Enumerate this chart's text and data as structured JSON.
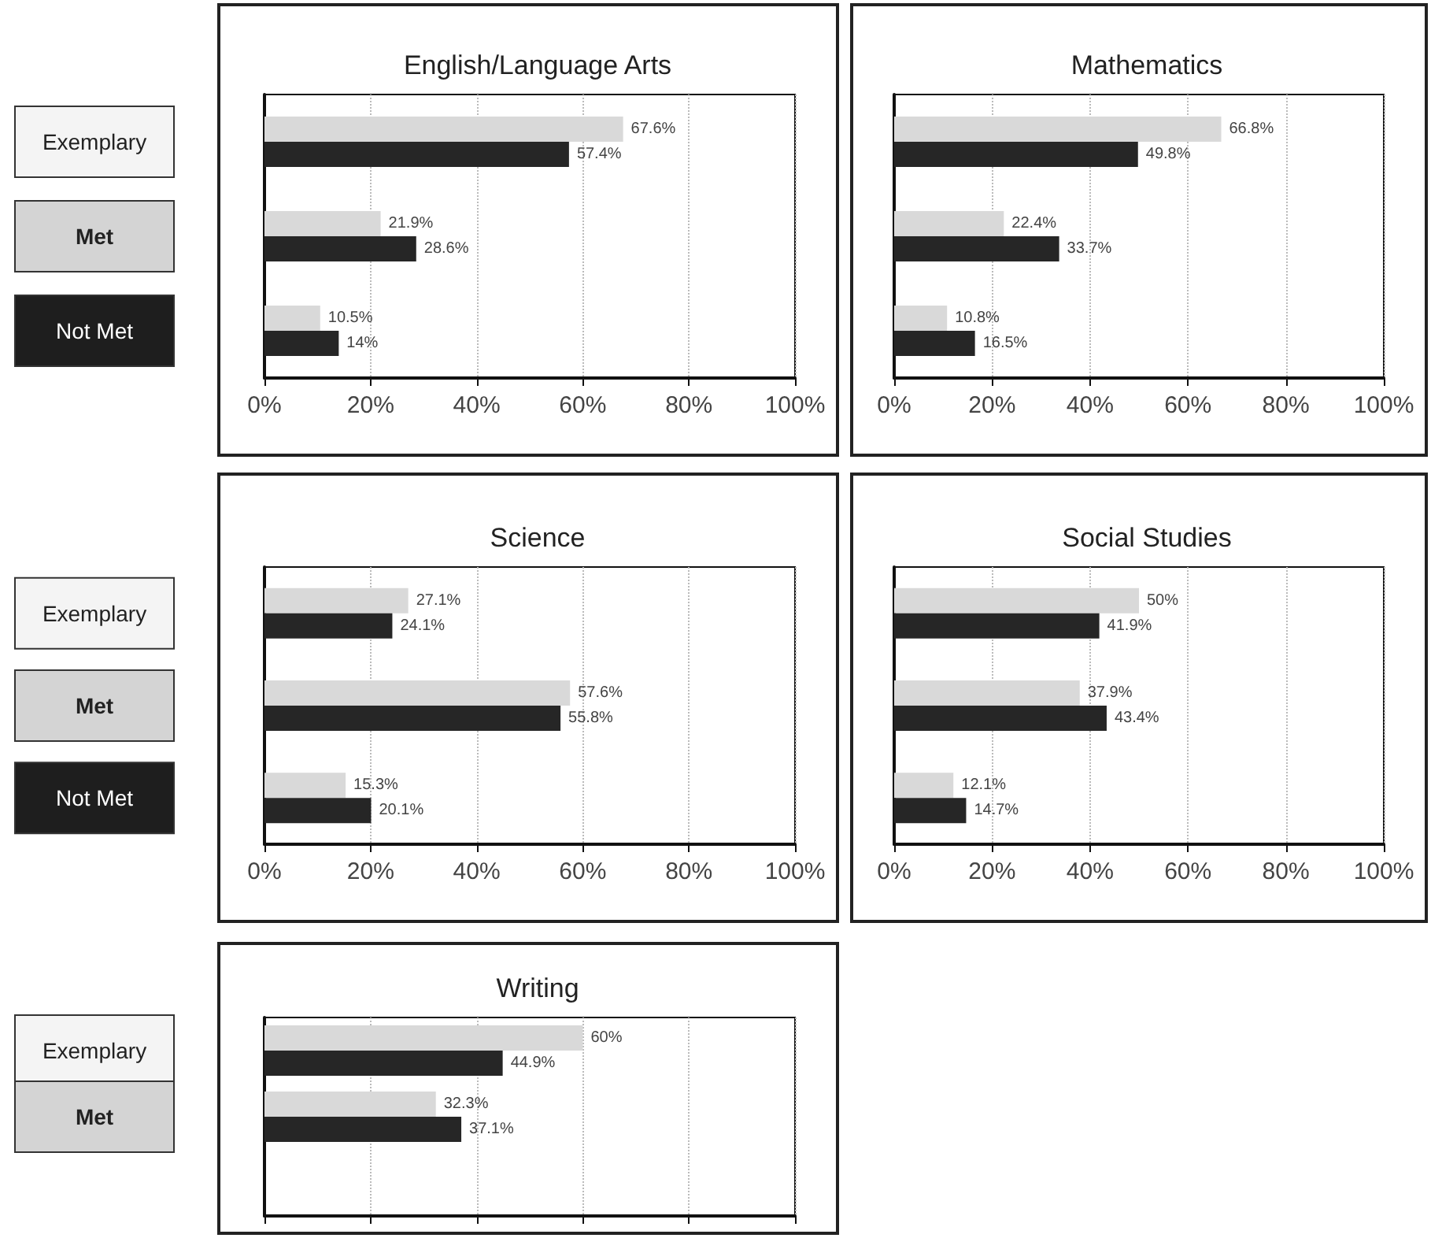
{
  "chart_data": [
    {
      "type": "bar",
      "orientation": "horizontal",
      "title": "English/Language Arts",
      "categories": [
        "Exemplary",
        "Met",
        "Not Met"
      ],
      "series": [
        {
          "color": "#d9d9d9",
          "values": [
            67.6,
            21.9,
            10.5
          ],
          "value_labels": [
            "67.6%",
            "21.9%",
            "10.5%"
          ]
        },
        {
          "color": "#262626",
          "values": [
            57.4,
            28.6,
            14
          ],
          "value_labels": [
            "57.4%",
            "28.6%",
            "14%"
          ]
        }
      ],
      "xlim": [
        0,
        100
      ],
      "xticks": [
        {
          "value": 0,
          "label": "0%"
        },
        {
          "value": 20,
          "label": "20%"
        },
        {
          "value": 40,
          "label": "40%"
        },
        {
          "value": 60,
          "label": "60%"
        },
        {
          "value": 80,
          "label": "80%"
        },
        {
          "value": 100,
          "label": "100%"
        }
      ],
      "grid": "x"
    },
    {
      "type": "bar",
      "orientation": "horizontal",
      "title": "Mathematics",
      "categories": [
        null,
        null,
        null
      ],
      "series": [
        {
          "color": "#d9d9d9",
          "values": [
            66.8,
            22.4,
            10.8
          ],
          "value_labels": [
            "66.8%",
            "22.4%",
            "10.8%"
          ]
        },
        {
          "color": "#262626",
          "values": [
            49.8,
            33.7,
            16.5
          ],
          "value_labels": [
            "49.8%",
            "33.7%",
            "16.5%"
          ]
        }
      ],
      "xlim": [
        0,
        100
      ],
      "xticks": [
        {
          "value": 0,
          "label": "0%"
        },
        {
          "value": 20,
          "label": "20%"
        },
        {
          "value": 40,
          "label": "40%"
        },
        {
          "value": 60,
          "label": "60%"
        },
        {
          "value": 80,
          "label": "80%"
        },
        {
          "value": 100,
          "label": "100%"
        }
      ],
      "grid": "x",
      "tick_labels": "x"
    },
    {
      "type": "bar",
      "orientation": "horizontal",
      "title": "Science",
      "categories": [
        "Exemplary",
        "Met",
        "Not Met"
      ],
      "series": [
        {
          "color": "#d9d9d9",
          "values": [
            27.1,
            57.6,
            15.3
          ],
          "value_labels": [
            "27.1%",
            "57.6%",
            "15.3%"
          ]
        },
        {
          "color": "#262626",
          "values": [
            24.1,
            55.8,
            20.1
          ],
          "value_labels": [
            "24.1%",
            "55.8%",
            "20.1%"
          ]
        }
      ],
      "xlim": [
        0,
        100
      ],
      "xticks": [
        {
          "value": 0,
          "label": "0%"
        },
        {
          "value": 20,
          "label": "20%"
        },
        {
          "value": 40,
          "label": "40%"
        },
        {
          "value": 60,
          "label": "60%"
        },
        {
          "value": 80,
          "label": "80%"
        },
        {
          "value": 100,
          "label": "100%"
        }
      ],
      "grid": "x"
    },
    {
      "type": "bar",
      "orientation": "horizontal",
      "title": "Social Studies",
      "categories": [
        null,
        null,
        null
      ],
      "series": [
        {
          "color": "#d9d9d9",
          "values": [
            50,
            37.9,
            12.1
          ],
          "value_labels": [
            "50%",
            "37.9%",
            "12.1%"
          ]
        },
        {
          "color": "#262626",
          "values": [
            41.9,
            43.4,
            14.7
          ],
          "value_labels": [
            "41.9%",
            "43.4%",
            "14.7%"
          ]
        }
      ],
      "xlim": [
        0,
        100
      ],
      "xticks": [
        {
          "value": 0,
          "label": "0%"
        },
        {
          "value": 20,
          "label": "20%"
        },
        {
          "value": 40,
          "label": "40%"
        },
        {
          "value": 60,
          "label": "60%"
        },
        {
          "value": 80,
          "label": "80%"
        },
        {
          "value": 100,
          "label": "100%"
        }
      ],
      "grid": "x",
      "tick_labels": "x"
    },
    {
      "type": "bar",
      "orientation": "horizontal",
      "title": "Writing",
      "categories": [
        "Exemplary",
        "Met",
        null
      ],
      "series": [
        {
          "color": "#d9d9d9",
          "values": [
            60,
            32.3,
            null
          ],
          "value_labels": [
            "60%",
            "32.3%",
            null
          ]
        },
        {
          "color": "#262626",
          "values": [
            44.9,
            37.1,
            null
          ],
          "value_labels": [
            "44.9%",
            "37.1%",
            null
          ]
        }
      ],
      "xlim": [
        0,
        100
      ],
      "xticks": [
        0,
        20,
        40,
        60,
        80,
        100
      ],
      "grid": "x",
      "tick_labels": "y"
    }
  ]
}
